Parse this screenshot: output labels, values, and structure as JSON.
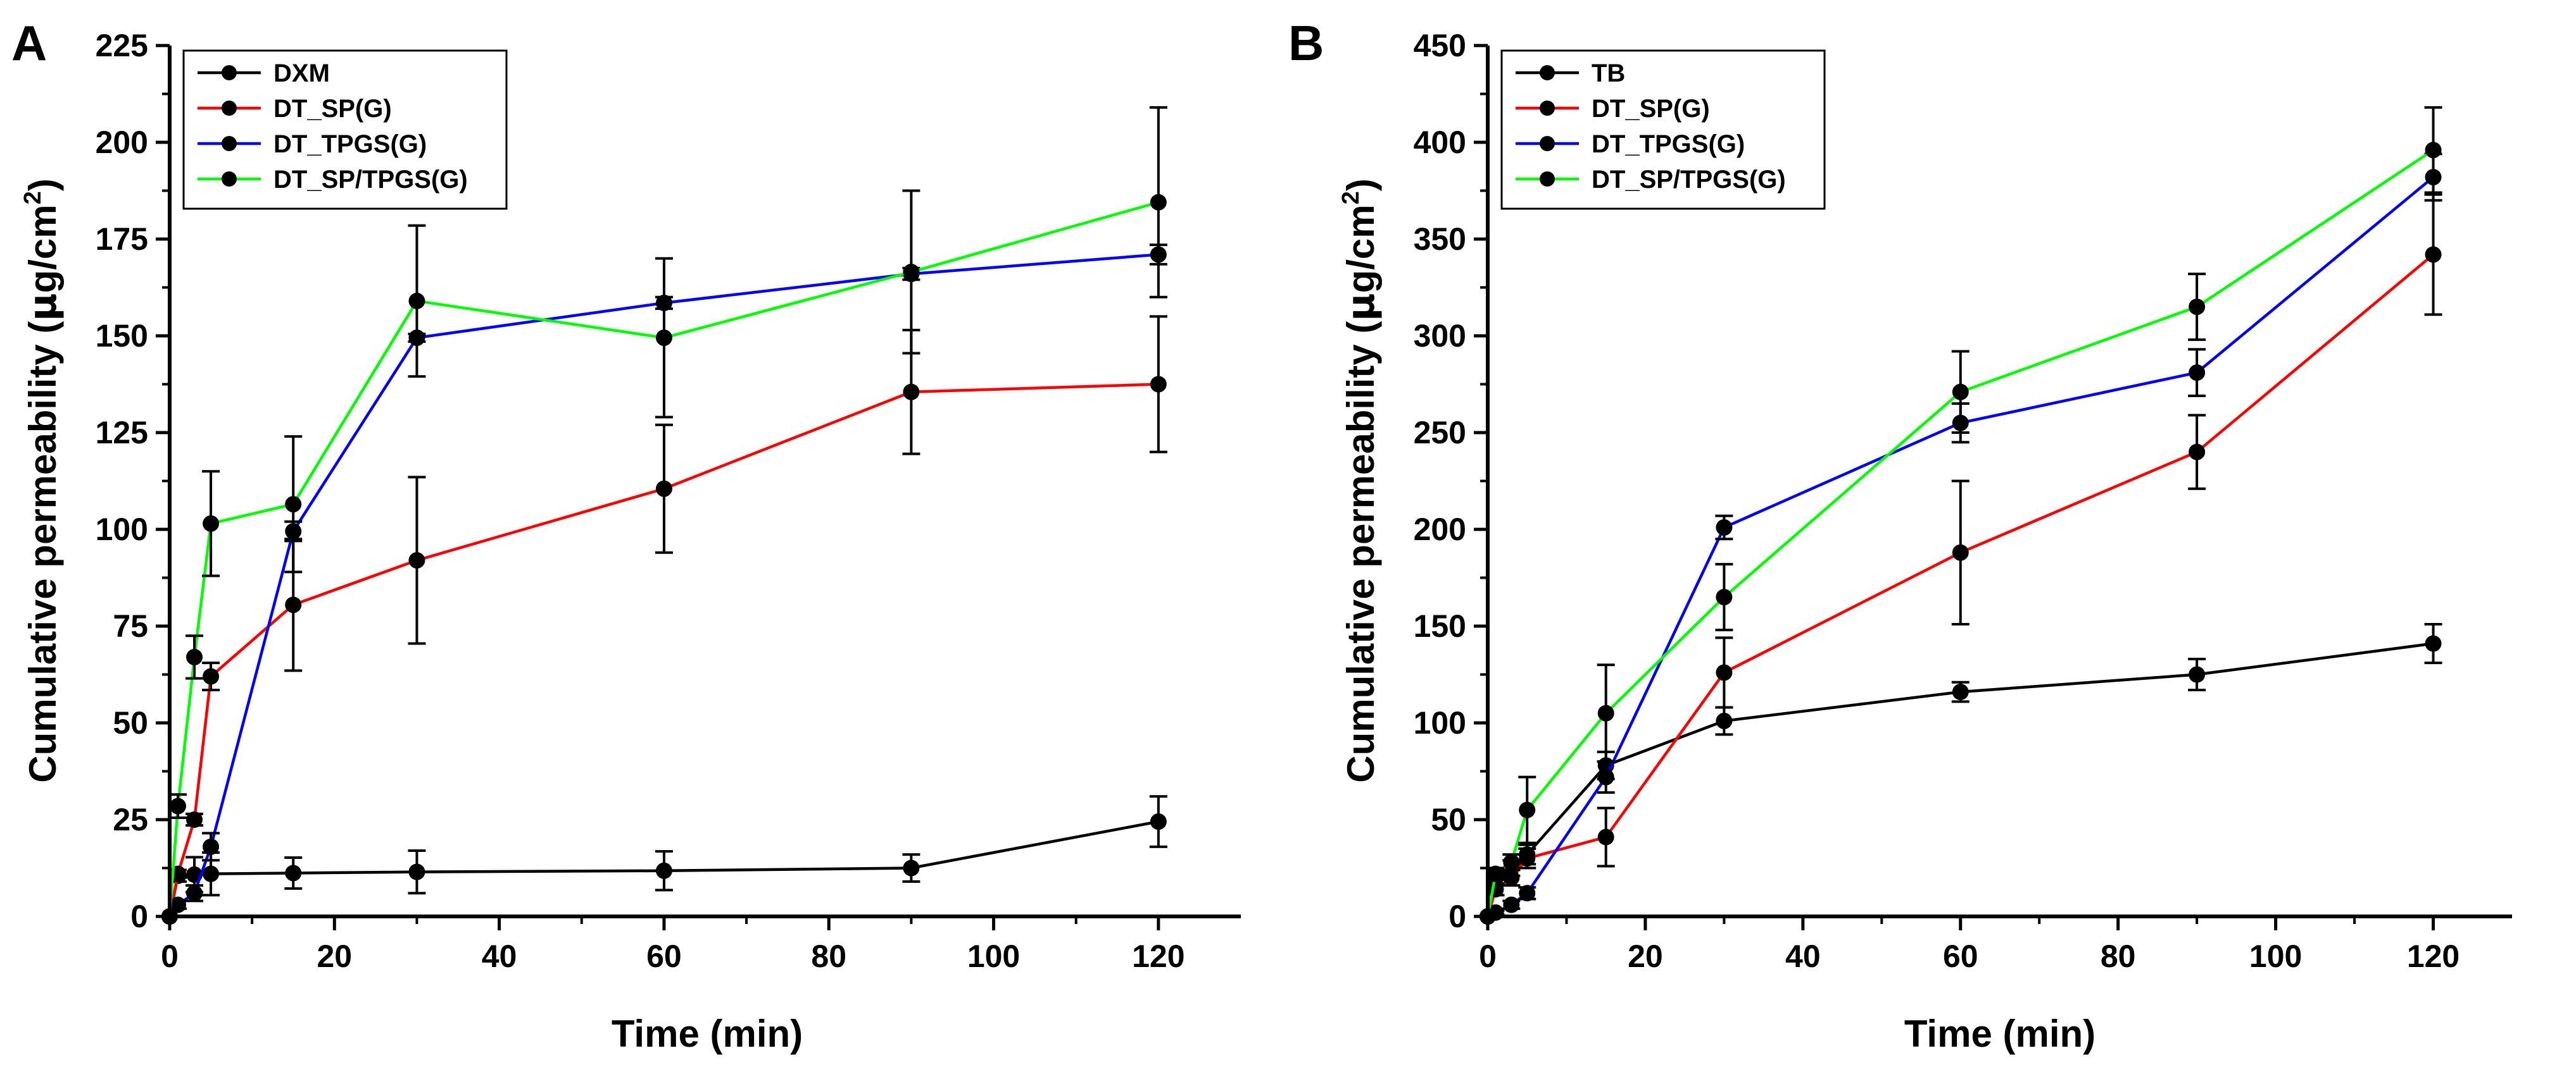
{
  "colors": {
    "black": "#000000",
    "red": "#ff0000",
    "blue": "#0000ff",
    "green": "#00ff00"
  },
  "chart_data": [
    {
      "panel": "A",
      "type": "line",
      "xlabel": "Time (min)",
      "ylabel_main": "Cumulative permeability (",
      "ylabel_mu": "μ",
      "ylabel_unit": "g/cm",
      "ylabel_sup": "2",
      "ylabel_close": ")",
      "xlim": [
        0,
        130
      ],
      "ylim": [
        0,
        225
      ],
      "xticks": [
        0,
        20,
        40,
        60,
        80,
        100,
        120
      ],
      "yticks": [
        0,
        25,
        50,
        75,
        100,
        125,
        150,
        175,
        200,
        225
      ],
      "legend_position": "top-left",
      "x": [
        0,
        1,
        3,
        5,
        15,
        30,
        60,
        90,
        120
      ],
      "series": [
        {
          "name": "DXM",
          "color": "#000000",
          "values": [
            0,
            10.5,
            10.8,
            11,
            11.2,
            11.5,
            11.8,
            12.5,
            24.5
          ],
          "errors": [
            0,
            1.5,
            4.5,
            5.5,
            4,
            5.5,
            5,
            3.5,
            6.5
          ]
        },
        {
          "name": "DT_SP(G)",
          "color": "#ff0000",
          "values": [
            0,
            11,
            25,
            62,
            80.5,
            92,
            110.5,
            135.5,
            137.5
          ],
          "errors": [
            0,
            1,
            1.5,
            3.5,
            17,
            21.5,
            16.5,
            16,
            17.5
          ]
        },
        {
          "name": "DT_TPGS(G)",
          "color": "#0000ff",
          "values": [
            0,
            3,
            6,
            18,
            99.5,
            149.5,
            158.5,
            166,
            171
          ],
          "errors": [
            0,
            1,
            2,
            3.5,
            2.5,
            1,
            1.5,
            1.5,
            2.5
          ]
        },
        {
          "name": "DT_SP/TPGS(G)",
          "color": "#00ff00",
          "values": [
            0,
            28.5,
            67,
            101.5,
            106.5,
            159,
            149.5,
            166.5,
            184.5
          ],
          "errors": [
            0,
            3,
            5.5,
            13.5,
            17.5,
            19.5,
            20.5,
            21,
            24.5
          ]
        }
      ]
    },
    {
      "panel": "B",
      "type": "line",
      "xlabel": "Time (min)",
      "ylabel_main": "Cumulative permeability (",
      "ylabel_mu": "μ",
      "ylabel_unit": "g/cm",
      "ylabel_sup": "2",
      "ylabel_close": ")",
      "xlim": [
        0,
        130
      ],
      "ylim": [
        0,
        450
      ],
      "xticks": [
        0,
        20,
        40,
        60,
        80,
        100,
        120
      ],
      "yticks": [
        0,
        50,
        100,
        150,
        200,
        250,
        300,
        350,
        400,
        450
      ],
      "legend_position": "top-left",
      "x": [
        0,
        1,
        3,
        5,
        15,
        30,
        60,
        90,
        120
      ],
      "series": [
        {
          "name": "TB",
          "color": "#000000",
          "values": [
            0,
            20,
            25,
            32,
            78,
            101,
            116,
            125,
            141
          ],
          "errors": [
            0,
            3,
            4,
            5,
            7,
            7,
            5,
            8,
            10
          ]
        },
        {
          "name": "DT_SP(G)",
          "color": "#ff0000",
          "values": [
            0,
            14,
            20,
            30,
            41,
            126,
            188,
            240,
            342
          ],
          "errors": [
            0,
            3,
            4,
            5,
            15,
            18,
            37,
            19,
            31
          ]
        },
        {
          "name": "DT_TPGS(G)",
          "color": "#0000ff",
          "values": [
            0,
            2,
            6,
            12,
            72,
            201,
            255,
            281,
            382
          ],
          "errors": [
            0,
            1,
            2,
            3,
            8,
            6,
            10,
            12,
            12
          ]
        },
        {
          "name": "DT_SP/TPGS(G)",
          "color": "#00ff00",
          "values": [
            0,
            22,
            28,
            55,
            105,
            165,
            271,
            315,
            396
          ],
          "errors": [
            0,
            3,
            4,
            17,
            25,
            17,
            21,
            17,
            22
          ]
        }
      ]
    }
  ]
}
